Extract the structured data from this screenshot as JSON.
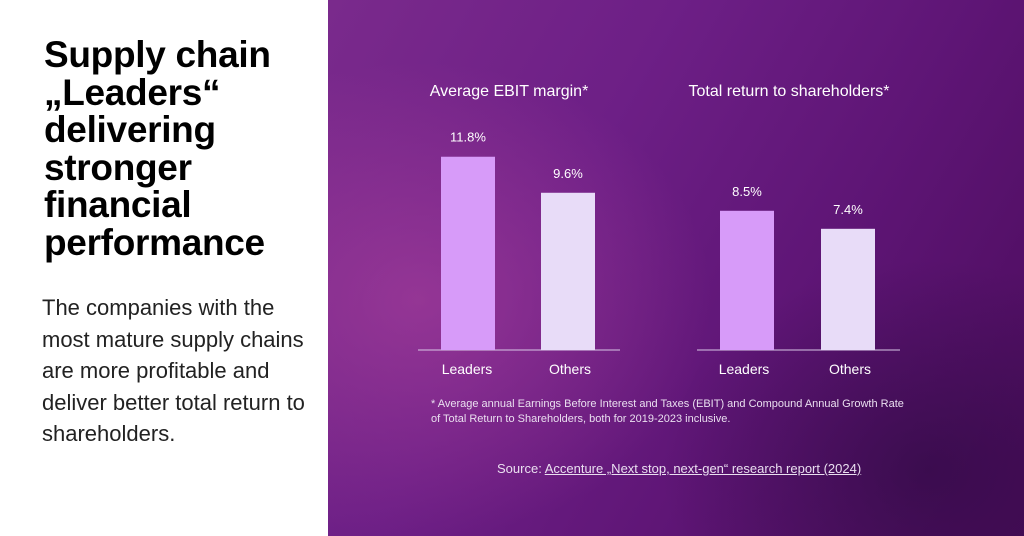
{
  "headline": "Supply chain „Leaders“ delivering stronger financial performance",
  "body_text": "The companies with the most mature supply chains are more profitable and deliver better total return to shareholders.",
  "footnote": "* Average annual Earnings Before Interest and Taxes (EBIT) and Compound Annual Growth Rate of Total Return to Shareholders, both for 2019-2023 inclusive.",
  "source": {
    "prefix": "Source: ",
    "link_text": "Accenture „Next stop, next-gen“ research report (2024)"
  },
  "colors": {
    "leaders_bar": "#d79bf9",
    "others_bar": "#e8dcf8",
    "text_light": "#eadff0"
  },
  "chart_data": [
    {
      "type": "bar",
      "title": "Average EBIT margin*",
      "categories": [
        "Leaders",
        "Others"
      ],
      "values": [
        11.8,
        9.6
      ],
      "value_labels": [
        "11.8%",
        "9.6%"
      ],
      "ylim": [
        0,
        12.7
      ],
      "grid": false
    },
    {
      "type": "bar",
      "title": "Total return to shareholders*",
      "categories": [
        "Leaders",
        "Others"
      ],
      "values": [
        8.5,
        7.4
      ],
      "value_labels": [
        "8.5%",
        "7.4%"
      ],
      "ylim": [
        0,
        12.7
      ],
      "grid": false
    }
  ]
}
